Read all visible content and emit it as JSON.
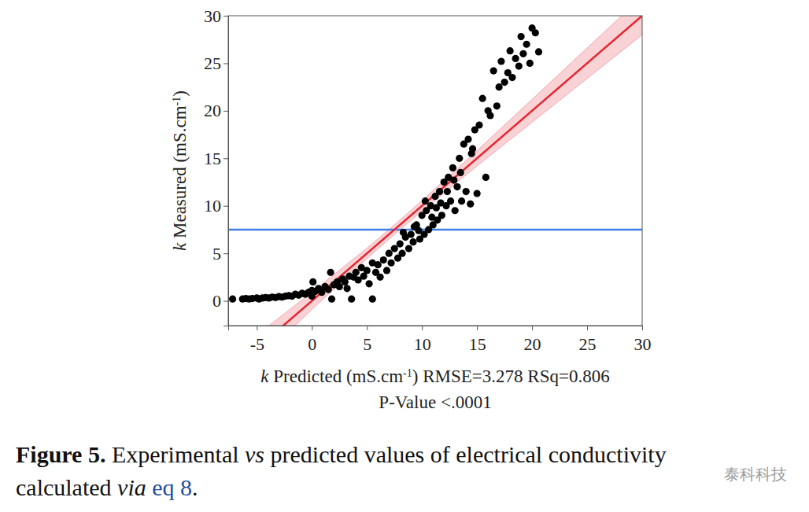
{
  "chart_data": {
    "type": "scatter",
    "xlabel": [
      "k",
      " Predicted (mS.cm",
      "-1",
      ")"
    ],
    "ylabel": [
      "k",
      " Measured (mS.cm",
      "-1",
      ")"
    ],
    "annotations": [
      "RMSE=3.278 RSq=0.806",
      "P-Value <.0001"
    ],
    "color": "#000000",
    "marker": "circle",
    "xlim": [
      -7.6,
      30
    ],
    "ylim": [
      -2.6,
      30
    ],
    "xticks": [
      -5,
      0,
      5,
      10,
      15,
      20,
      25,
      30
    ],
    "yticks": [
      0,
      5,
      10,
      15,
      20,
      25,
      30
    ],
    "x": [
      -7.2,
      -6.3,
      -6,
      -5.7,
      -5.4,
      -5,
      -4.8,
      -4.5,
      -4.2,
      -3.9,
      -3.6,
      -3.3,
      -3,
      -2.7,
      -2.4,
      -2.1,
      -1.8,
      -1.5,
      -1.2,
      -0.9,
      -0.6,
      -0.3,
      0,
      0.1,
      0,
      0.3,
      0.6,
      0.9,
      1.2,
      1.5,
      1.7,
      1.8,
      2,
      2.3,
      2.5,
      2.8,
      3,
      3.2,
      3.4,
      3.6,
      3.8,
      4,
      4.2,
      4.5,
      4.7,
      5,
      5.2,
      5.5,
      5.5,
      5.8,
      6,
      6.2,
      6.5,
      6.8,
      7,
      7.2,
      7.5,
      7.8,
      8,
      8.2,
      8.5,
      8.8,
      9,
      9.2,
      9.5,
      9.8,
      10,
      10.2,
      10.4,
      10.6,
      10.8,
      11,
      11.2,
      11.4,
      11.6,
      11.8,
      12,
      12.2,
      12.4,
      12.6,
      12.8,
      13,
      13.2,
      13.4,
      13.6,
      13.8,
      14,
      14.2,
      14.4,
      14.6,
      14.8,
      15,
      15.2,
      15.5,
      15.8,
      16,
      16.2,
      16.5,
      16.8,
      17,
      17.2,
      17.5,
      17.8,
      18,
      18.2,
      18.5,
      18.8,
      19,
      19.2,
      19.5,
      19.8,
      20,
      20.3,
      20.6,
      8.3,
      9.3,
      10.3,
      11.3,
      12.3,
      13.5,
      14.5,
      10.9,
      9.7,
      11.7,
      12.9
    ],
    "y": [
      0.2,
      0.2,
      0.25,
      0.2,
      0.25,
      0.3,
      0.2,
      0.3,
      0.35,
      0.3,
      0.4,
      0.35,
      0.45,
      0.4,
      0.5,
      0.55,
      0.5,
      0.7,
      0.6,
      0.8,
      0.7,
      0.9,
      1.1,
      2.0,
      0.5,
      1.0,
      1.3,
      0.9,
      1.5,
      1.2,
      3.0,
      0.2,
      1.7,
      2.0,
      1.5,
      2.3,
      2.0,
      1.3,
      2.6,
      0.2,
      2.5,
      3.0,
      2.2,
      3.5,
      2.6,
      3.2,
      1.8,
      0.2,
      4.0,
      3.0,
      3.8,
      2.5,
      4.3,
      3.2,
      5.0,
      4.0,
      5.5,
      4.5,
      6.0,
      5.0,
      6.7,
      5.5,
      7.0,
      6.2,
      8.0,
      6.5,
      9.0,
      7.0,
      9.5,
      7.5,
      10.0,
      8.0,
      11.0,
      8.5,
      11.5,
      9.0,
      12.5,
      10.0,
      13.0,
      10.5,
      14.0,
      9.5,
      12.0,
      15.0,
      10.5,
      16.5,
      11.5,
      17.0,
      10.2,
      16.0,
      18.0,
      11.3,
      18.5,
      21.3,
      13.0,
      20.0,
      19.5,
      24.2,
      20.5,
      22.5,
      25.2,
      23.0,
      24.0,
      26.3,
      23.5,
      25.5,
      24.7,
      27.8,
      26.0,
      27.0,
      25.0,
      28.7,
      28.2,
      26.2,
      7.2,
      7.8,
      10.5,
      9.8,
      11.5,
      13.5,
      15.5,
      8.8,
      7.4,
      10.3,
      12.7
    ],
    "fit_line": {
      "color": "#e3262e",
      "x": [
        -7.6,
        30
      ],
      "y": [
        -7.6,
        30
      ]
    },
    "confidence_band": {
      "color": "#f4a6ae",
      "x": [
        -7.6,
        -4,
        0,
        5,
        7.5,
        10,
        15,
        20,
        25,
        30
      ],
      "lower": [
        -9.3,
        -5.3,
        -0.9,
        4.45,
        7.0,
        9.45,
        14.2,
        18.8,
        23.4,
        28.0
      ],
      "upper": [
        -5.9,
        -2.7,
        0.9,
        5.55,
        8.0,
        10.55,
        15.8,
        21.2,
        26.6,
        32.0
      ]
    },
    "mean_line": {
      "color": "#3d7fe3",
      "value": 7.5
    }
  },
  "caption": [
    [
      "Figure 5.",
      " Experimental ",
      "vs",
      " predicted values of electrical conductivity"
    ],
    [
      "calculated ",
      "via",
      " ",
      "eq 8",
      "."
    ]
  ],
  "watermark": "泰科科技"
}
